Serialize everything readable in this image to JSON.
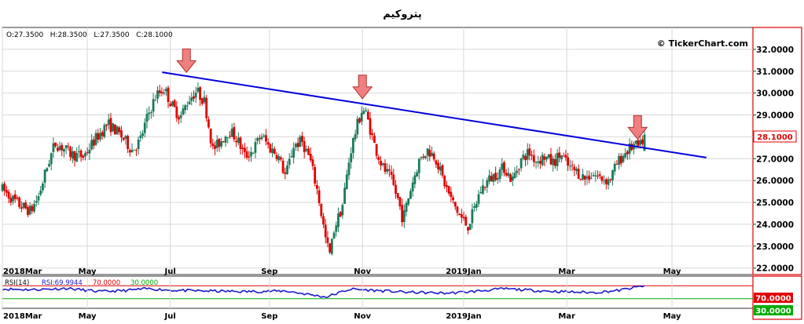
{
  "title": "پتروکیم",
  "ohlc_text": "O:27.3500   H:28.3500   L:27.3500   C:28.1000",
  "watermark": "© TickerChart.com",
  "rsi_label": "RSI(14)",
  "rsi_value_text": "RSI:69.9944",
  "rsi_upper_text": "70.0000",
  "rsi_lower_text": "30.0000",
  "last_price_label": "28.1000",
  "rsi_upper_badge": "70.0000",
  "rsi_lower_badge": "30.0000",
  "colors": {
    "up": "#1a7a5a",
    "down": "#e00000",
    "trendline": "#0000dd",
    "rsi": "#1a1acc",
    "rsi_upper": "#e00000",
    "rsi_lower": "#00aa00",
    "arrow": "#f08080",
    "frame_right": "#e00000",
    "grid": "#d8d8d8"
  },
  "chart_data": {
    "type": "candlestick",
    "title": "پتروکیم",
    "ylim": [
      21.7,
      33.0
    ],
    "y_ticks": [
      "22.0000",
      "23.0000",
      "24.0000",
      "25.0000",
      "26.0000",
      "27.0000",
      "28.0000",
      "29.0000",
      "30.0000",
      "31.0000",
      "32.0000"
    ],
    "x_ticks": [
      {
        "label": "2018Mar",
        "t": 0.0
      },
      {
        "label": "May",
        "t": 2.1
      },
      {
        "label": "Jul",
        "t": 4.15
      },
      {
        "label": "Sep",
        "t": 6.6
      },
      {
        "label": "Nov",
        "t": 8.9
      },
      {
        "label": "2019Jan",
        "t": 11.4
      },
      {
        "label": "Mar",
        "t": 13.95
      },
      {
        "label": "May",
        "t": 16.55
      }
    ],
    "x_range_months": [
      0.0,
      18.55
    ],
    "price_waypoints": [
      [
        0.0,
        25.6
      ],
      [
        0.4,
        24.9
      ],
      [
        0.7,
        24.6
      ],
      [
        0.9,
        25.3
      ],
      [
        1.1,
        26.6
      ],
      [
        1.3,
        27.7
      ],
      [
        1.5,
        27.5
      ],
      [
        1.7,
        27.2
      ],
      [
        2.0,
        27.1
      ],
      [
        2.3,
        27.9
      ],
      [
        2.6,
        28.6
      ],
      [
        2.8,
        28.3
      ],
      [
        3.0,
        27.9
      ],
      [
        3.2,
        27.4
      ],
      [
        3.4,
        27.8
      ],
      [
        3.6,
        29.0
      ],
      [
        3.8,
        29.9
      ],
      [
        4.0,
        30.2
      ],
      [
        4.2,
        29.4
      ],
      [
        4.4,
        28.9
      ],
      [
        4.6,
        29.7
      ],
      [
        4.8,
        30.1
      ],
      [
        5.0,
        29.6
      ],
      [
        5.2,
        27.4
      ],
      [
        5.4,
        27.8
      ],
      [
        5.6,
        28.3
      ],
      [
        5.8,
        27.9
      ],
      [
        6.0,
        27.1
      ],
      [
        6.2,
        27.4
      ],
      [
        6.4,
        28.1
      ],
      [
        6.6,
        27.5
      ],
      [
        6.8,
        27.2
      ],
      [
        7.0,
        26.2
      ],
      [
        7.2,
        27.6
      ],
      [
        7.4,
        27.8
      ],
      [
        7.6,
        27.0
      ],
      [
        7.8,
        25.4
      ],
      [
        8.0,
        23.2
      ],
      [
        8.1,
        22.6
      ],
      [
        8.2,
        23.8
      ],
      [
        8.4,
        24.8
      ],
      [
        8.6,
        27.3
      ],
      [
        8.75,
        28.4
      ],
      [
        8.9,
        29.3
      ],
      [
        9.0,
        29.0
      ],
      [
        9.2,
        27.6
      ],
      [
        9.4,
        26.6
      ],
      [
        9.6,
        26.1
      ],
      [
        9.8,
        25.0
      ],
      [
        9.9,
        24.2
      ],
      [
        10.1,
        25.7
      ],
      [
        10.3,
        26.9
      ],
      [
        10.5,
        27.4
      ],
      [
        10.7,
        27.1
      ],
      [
        10.9,
        26.0
      ],
      [
        11.1,
        25.1
      ],
      [
        11.3,
        24.4
      ],
      [
        11.5,
        23.9
      ],
      [
        11.65,
        24.6
      ],
      [
        11.8,
        25.5
      ],
      [
        12.0,
        26.0
      ],
      [
        12.2,
        26.3
      ],
      [
        12.4,
        26.6
      ],
      [
        12.6,
        26.0
      ],
      [
        12.8,
        26.9
      ],
      [
        13.0,
        27.3
      ],
      [
        13.2,
        26.9
      ],
      [
        13.4,
        27.1
      ],
      [
        13.6,
        26.8
      ],
      [
        13.8,
        27.2
      ],
      [
        14.0,
        26.6
      ],
      [
        14.2,
        26.4
      ],
      [
        14.4,
        26.1
      ],
      [
        14.6,
        26.3
      ],
      [
        14.8,
        26.1
      ],
      [
        15.0,
        26.0
      ],
      [
        15.2,
        26.8
      ],
      [
        15.4,
        27.3
      ],
      [
        15.6,
        27.6
      ],
      [
        15.75,
        27.5
      ],
      [
        15.87,
        28.1
      ]
    ],
    "last_candle": {
      "open": 27.35,
      "high": 28.35,
      "low": 27.35,
      "close": 28.1
    },
    "trendline": {
      "start": {
        "t": 3.95,
        "price": 30.95
      },
      "end": {
        "t": 17.4,
        "price": 27.05
      }
    },
    "resistance_touches": [
      {
        "t": 4.55,
        "price": 30.8
      },
      {
        "t": 8.9,
        "price": 29.6
      },
      {
        "t": 15.7,
        "price": 27.75
      }
    ],
    "rsi": {
      "period": 14,
      "last_value": 69.9944,
      "upper": 70.0,
      "lower": 30.0,
      "ylim": [
        0,
        100
      ],
      "waypoints": [
        [
          0.0,
          60
        ],
        [
          0.8,
          58
        ],
        [
          1.6,
          62
        ],
        [
          2.4,
          52
        ],
        [
          3.0,
          55
        ],
        [
          3.6,
          61
        ],
        [
          4.2,
          56
        ],
        [
          5.0,
          54
        ],
        [
          6.0,
          52
        ],
        [
          7.0,
          54
        ],
        [
          8.0,
          35
        ],
        [
          8.6,
          60
        ],
        [
          9.0,
          57
        ],
        [
          10.0,
          50
        ],
        [
          11.0,
          47
        ],
        [
          11.6,
          52
        ],
        [
          12.4,
          61
        ],
        [
          13.2,
          55
        ],
        [
          14.0,
          51
        ],
        [
          14.6,
          49
        ],
        [
          15.2,
          55
        ],
        [
          15.87,
          69.9944
        ]
      ]
    }
  }
}
